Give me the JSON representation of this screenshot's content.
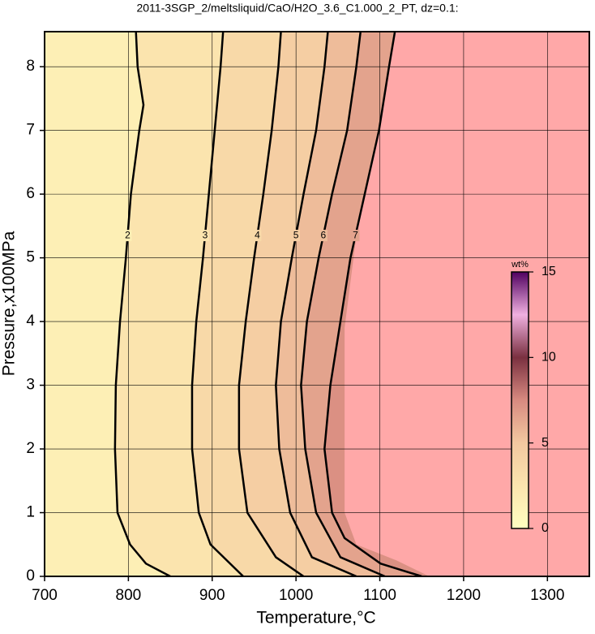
{
  "chart_data": {
    "type": "contour",
    "title": "2011-3SGP_2/meltsliquid/CaO/H2O_3.6_C1.000_2_PT, dz=0.1:",
    "x_label": "Temperature,°C",
    "y_label": "Pressure,x100MPa",
    "xlim": [
      700,
      1350
    ],
    "xticks": [
      700,
      800,
      900,
      1000,
      1100,
      1200,
      1300
    ],
    "ylim": [
      0,
      8.55
    ],
    "yticks": [
      0,
      1,
      2,
      3,
      4,
      5,
      6,
      7,
      8
    ],
    "grid": true,
    "background_color": "#ffa8a8",
    "colormap": [
      "#ffffc0",
      "#fbe4ae",
      "#f3c8a0",
      "#d88a80",
      "#7a3040",
      "#f0b0e0",
      "#500060"
    ],
    "colorbar": {
      "label": "wt%",
      "lim": [
        0,
        15
      ],
      "ticks": [
        0,
        5,
        10,
        15
      ]
    },
    "data_region": {
      "x": [
        1159,
        1120,
        1072,
        1058,
        1058,
        1103
      ],
      "values": [
        0,
        0.25,
        0.5,
        1,
        3.9,
        8.55
      ]
    },
    "contours": [
      {
        "level": 2,
        "x": [
          850,
          821,
          802,
          787,
          784,
          785,
          790,
          797,
          803,
          813,
          818,
          811,
          809
        ],
        "values": [
          0,
          0.2,
          0.5,
          1,
          2,
          3,
          4,
          5,
          6,
          7,
          7.4,
          8,
          8.55
        ]
      },
      {
        "level": 3,
        "x": [
          937,
          898,
          884,
          876,
          876,
          881,
          889,
          896,
          903,
          910,
          913
        ],
        "values": [
          0,
          0.5,
          1,
          2,
          3,
          4,
          5,
          6,
          7,
          8,
          8.55
        ]
      },
      {
        "level": 4,
        "x": [
          1009,
          976,
          942,
          932,
          932,
          940,
          950,
          961,
          971,
          979,
          982
        ],
        "values": [
          0,
          0.3,
          1,
          2,
          3,
          4,
          5,
          6,
          7,
          8,
          8.55
        ]
      },
      {
        "level": 5,
        "x": [
          1072,
          1019,
          993,
          980,
          976,
          982,
          995,
          1009,
          1024,
          1034,
          1038
        ],
        "values": [
          0,
          0.3,
          1,
          2,
          3,
          4,
          5,
          6,
          7,
          8,
          8.55
        ]
      },
      {
        "level": 6,
        "x": [
          1106,
          1053,
          1024,
          1011,
          1006,
          1013,
          1027,
          1043,
          1061,
          1072,
          1077
        ],
        "values": [
          0,
          0.3,
          1,
          2,
          3,
          4,
          5,
          6,
          7,
          8,
          8.55
        ]
      },
      {
        "level": 7,
        "x": [
          1150,
          1101,
          1058,
          1043,
          1034,
          1041,
          1053,
          1065,
          1082,
          1099,
          1111,
          1118
        ],
        "values": [
          0,
          0.2,
          0.6,
          1,
          2,
          3,
          4,
          5,
          6,
          7,
          8,
          8.55
        ]
      }
    ]
  }
}
